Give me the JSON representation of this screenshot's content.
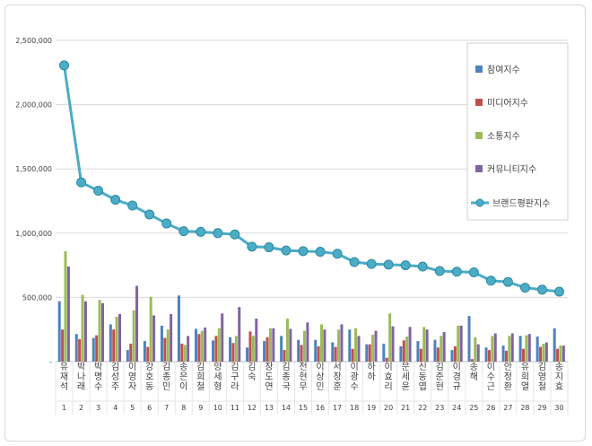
{
  "chart_data": {
    "type": "bar",
    "combo": "bar + line",
    "title": "",
    "xlabel": "",
    "ylabel": "",
    "ylim": [
      0,
      2500000
    ],
    "yticks": [
      0,
      500000,
      1000000,
      1500000,
      2000000,
      2500000
    ],
    "ytick_labels": [
      "-",
      "500,000",
      "1,000,000",
      "1,500,000",
      "2,000,000",
      "2,500,000"
    ],
    "grid": true,
    "legend_position": "top-right",
    "categories": [
      "유재석",
      "박나래",
      "박명수",
      "김성주",
      "이영자",
      "강호동",
      "김종민",
      "송은이",
      "김희철",
      "양세형",
      "김구라",
      "김숙",
      "장도연",
      "김종국",
      "전현무",
      "이상민",
      "서장훈",
      "이광수",
      "하하",
      "이효리",
      "문세윤",
      "신동엽",
      "김준현",
      "이경규",
      "송해",
      "이수근",
      "안정환",
      "유희열",
      "김영철",
      "송지효"
    ],
    "ranks": [
      "1",
      "2",
      "3",
      "4",
      "5",
      "6",
      "7",
      "8",
      "9",
      "10",
      "11",
      "12",
      "13",
      "14",
      "15",
      "16",
      "17",
      "18",
      "19",
      "20",
      "21",
      "22",
      "23",
      "24",
      "25",
      "26",
      "27",
      "28",
      "29",
      "30"
    ],
    "series": [
      {
        "name": "참여지수",
        "kind": "bar",
        "color": "#4F81BD",
        "values": [
          470000,
          215000,
          185000,
          290000,
          90000,
          160000,
          280000,
          515000,
          255000,
          165000,
          190000,
          110000,
          160000,
          200000,
          170000,
          170000,
          150000,
          250000,
          135000,
          140000,
          120000,
          160000,
          170000,
          90000,
          355000,
          110000,
          125000,
          200000,
          195000,
          260000
        ]
      },
      {
        "name": "미디어지수",
        "kind": "bar",
        "color": "#C0504D",
        "values": [
          250000,
          175000,
          205000,
          250000,
          140000,
          115000,
          185000,
          140000,
          215000,
          200000,
          145000,
          235000,
          190000,
          90000,
          130000,
          120000,
          115000,
          100000,
          135000,
          30000,
          165000,
          100000,
          110000,
          120000,
          20000,
          90000,
          85000,
          100000,
          115000,
          100000
        ]
      },
      {
        "name": "소통지수",
        "kind": "bar",
        "color": "#9BBB59",
        "values": [
          860000,
          520000,
          480000,
          350000,
          400000,
          505000,
          250000,
          130000,
          240000,
          260000,
          200000,
          200000,
          260000,
          335000,
          240000,
          290000,
          250000,
          260000,
          210000,
          375000,
          195000,
          270000,
          200000,
          280000,
          190000,
          200000,
          200000,
          205000,
          140000,
          125000
        ]
      },
      {
        "name": "커뮤니티지수",
        "kind": "bar",
        "color": "#8064A2",
        "values": [
          740000,
          470000,
          455000,
          370000,
          590000,
          360000,
          370000,
          200000,
          265000,
          375000,
          425000,
          335000,
          260000,
          255000,
          305000,
          250000,
          290000,
          200000,
          240000,
          275000,
          270000,
          250000,
          230000,
          280000,
          135000,
          220000,
          220000,
          215000,
          150000,
          125000
        ]
      },
      {
        "name": "브랜드평판지수",
        "kind": "line",
        "color": "#4BACC6",
        "values": [
          2305000,
          1395000,
          1330000,
          1260000,
          1215000,
          1145000,
          1075000,
          1015000,
          1010000,
          1000000,
          990000,
          895000,
          890000,
          865000,
          860000,
          855000,
          840000,
          775000,
          760000,
          755000,
          750000,
          740000,
          705000,
          700000,
          695000,
          630000,
          620000,
          575000,
          560000,
          545000
        ]
      }
    ]
  }
}
